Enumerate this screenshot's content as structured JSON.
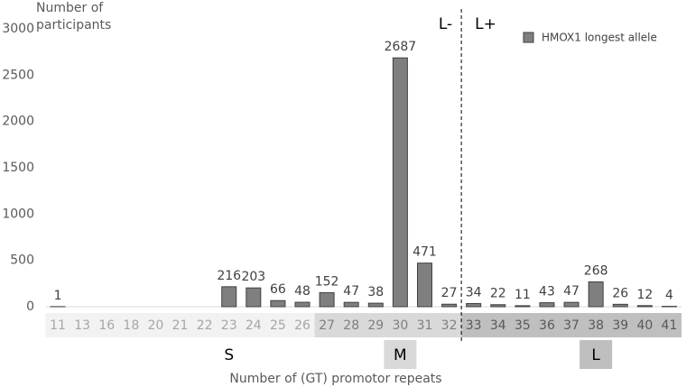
{
  "chart_data": {
    "type": "bar",
    "y_axis_label": "Number of participants",
    "x_axis_label": "Number of (GT) promotor repeats",
    "categories": [
      "11",
      "13",
      "16",
      "18",
      "20",
      "21",
      "22",
      "23",
      "24",
      "25",
      "26",
      "27",
      "28",
      "29",
      "30",
      "31",
      "32",
      "33",
      "34",
      "35",
      "36",
      "37",
      "38",
      "39",
      "40",
      "41"
    ],
    "series": [
      {
        "name": "HMOX1 longest allele",
        "color": "#7f7f7f",
        "values": [
          1,
          null,
          null,
          null,
          null,
          null,
          null,
          216,
          203,
          66,
          48,
          152,
          47,
          38,
          2687,
          471,
          27,
          34,
          22,
          11,
          43,
          47,
          268,
          26,
          12,
          4
        ]
      }
    ],
    "ylim": [
      0,
      3000
    ],
    "yticks": [
      0,
      500,
      1000,
      1500,
      2000,
      2500,
      3000
    ],
    "grid": false,
    "legend": "top-right",
    "bands": [
      {
        "from": "11",
        "to": "26",
        "color": "#f2f2f2",
        "text_color": "#a6a6a6"
      },
      {
        "from": "27",
        "to": "32",
        "color": "#d9d9d9",
        "text_color": "#7f7f7f"
      },
      {
        "from": "33",
        "to": "41",
        "color": "#bfbfbf",
        "text_color": "#595959"
      }
    ],
    "groups": [
      {
        "label": "S",
        "category": "23",
        "color": "#ffffff"
      },
      {
        "label": "M",
        "category": "30",
        "color": "#d9d9d9"
      },
      {
        "label": "L",
        "category": "38",
        "color": "#bfbfbf"
      }
    ],
    "divider": {
      "after": "32",
      "left_label": "L-",
      "right_label": "L+"
    }
  }
}
